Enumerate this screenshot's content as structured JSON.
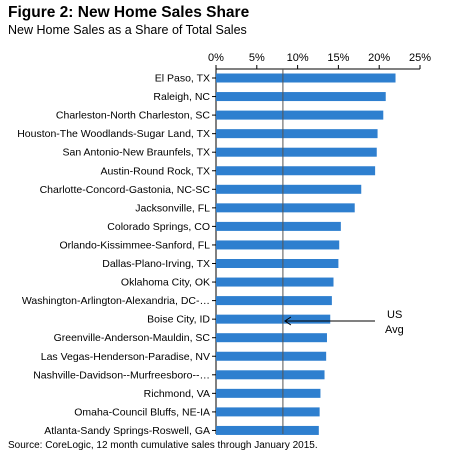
{
  "chart_data": {
    "type": "bar",
    "orientation": "horizontal",
    "title": "Figure 2: New Home Sales Share",
    "subtitle": "New Home Sales as a Share of Total Sales",
    "categories": [
      "El Paso, TX",
      "Raleigh, NC",
      "Charleston-North Charleston, SC",
      "Houston-The Woodlands-Sugar Land, TX",
      "San Antonio-New Braunfels, TX",
      "Austin-Round Rock, TX",
      "Charlotte-Concord-Gastonia, NC-SC",
      "Jacksonville, FL",
      "Colorado Springs, CO",
      "Orlando-Kissimmee-Sanford, FL",
      "Dallas-Plano-Irving, TX",
      "Oklahoma City, OK",
      "Washington-Arlington-Alexandria, DC-…",
      "Boise City, ID",
      "Greenville-Anderson-Mauldin, SC",
      "Las Vegas-Henderson-Paradise, NV",
      "Nashville-Davidson--Murfreesboro--…",
      "Richmond, VA",
      "Omaha-Council Bluffs, NE-IA",
      "Atlanta-Sandy Springs-Roswell, GA"
    ],
    "values": [
      22.0,
      20.8,
      20.5,
      19.8,
      19.7,
      19.5,
      17.8,
      17.0,
      15.3,
      15.1,
      15.0,
      14.4,
      14.2,
      14.0,
      13.6,
      13.5,
      13.3,
      12.8,
      12.7,
      12.6
    ],
    "xlim": [
      0,
      25
    ],
    "xticks": [
      "0%",
      "5%",
      "10%",
      "15%",
      "20%",
      "25%"
    ],
    "xaxis_position": "top",
    "grid": false,
    "bar_color": "#2e7fcf",
    "reference_line": {
      "value": 8.2,
      "label_line1": "US",
      "label_line2": "Avg"
    }
  },
  "source": "Source: CoreLogic, 12 month cumulative sales through January 2015."
}
